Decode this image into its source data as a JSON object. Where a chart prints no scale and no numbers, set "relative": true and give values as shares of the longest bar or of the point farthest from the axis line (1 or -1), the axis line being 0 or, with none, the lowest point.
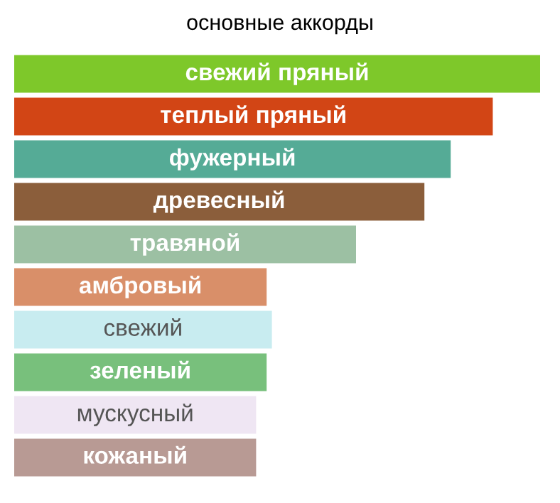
{
  "chart_data": {
    "type": "bar",
    "orientation": "horizontal",
    "relative": true,
    "title": "основные аккорды",
    "categories": [
      "свежий пряный",
      "теплый пряный",
      "фужерный",
      "древесный",
      "травяной",
      "амбровый",
      "свежий",
      "зеленый",
      "мускусный",
      "кожаный"
    ],
    "values": [
      1,
      0.91,
      0.83,
      0.78,
      0.65,
      0.48,
      0.49,
      0.48,
      0.46,
      0.46
    ],
    "colors": [
      "#7ec82a",
      "#d24515",
      "#55ab96",
      "#8b5e3b",
      "#9cc0a3",
      "#d98f69",
      "#c8ecf0",
      "#78c07c",
      "#efe6f3",
      "#b89a94"
    ]
  }
}
